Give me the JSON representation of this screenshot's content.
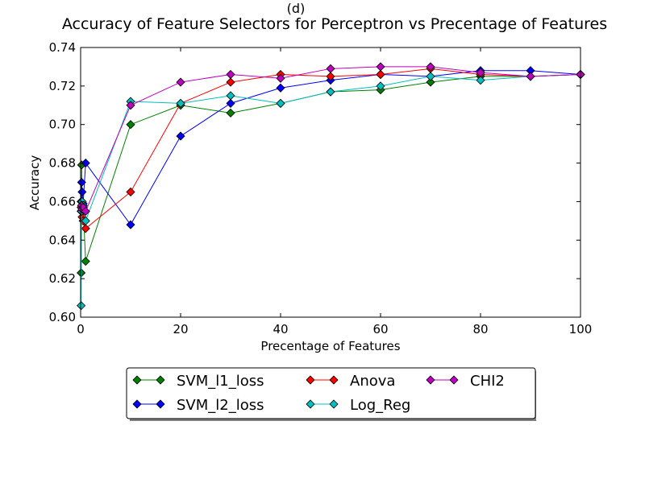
{
  "chart_data": {
    "type": "line",
    "subtitle": "(d)",
    "title": "Accuracy of Feature Selectors for Perceptron vs Precentage of Features",
    "xlabel": "Precentage of Features",
    "ylabel": "Accuracy",
    "xlim": [
      0,
      100
    ],
    "ylim": [
      0.6,
      0.74
    ],
    "xticks": [
      0,
      20,
      40,
      60,
      80,
      100
    ],
    "xtick_labels": [
      "0",
      "20",
      "40",
      "60",
      "80",
      "100"
    ],
    "yticks": [
      0.6,
      0.62,
      0.64,
      0.66,
      0.68,
      0.7,
      0.72,
      0.74
    ],
    "ytick_labels": [
      "0.60",
      "0.62",
      "0.64",
      "0.66",
      "0.68",
      "0.70",
      "0.72",
      "0.74"
    ],
    "grid": false,
    "legend_placement": "below",
    "series": [
      {
        "name": "SVM_l1_loss",
        "color": "#008000",
        "x": [
          0.1,
          0.2,
          0.3,
          0.5,
          1,
          10,
          20,
          30,
          40,
          50,
          60,
          70,
          80,
          90,
          100
        ],
        "y": [
          0.623,
          0.679,
          0.66,
          0.658,
          0.629,
          0.7,
          0.71,
          0.706,
          0.711,
          0.717,
          0.718,
          0.722,
          0.725,
          0.725,
          0.726
        ]
      },
      {
        "name": "SVM_l2_loss",
        "color": "#0000ff",
        "x": [
          0.1,
          0.2,
          0.3,
          0.5,
          1,
          10,
          20,
          30,
          40,
          50,
          60,
          70,
          80,
          90,
          100
        ],
        "y": [
          0.66,
          0.67,
          0.665,
          0.659,
          0.68,
          0.648,
          0.694,
          0.711,
          0.719,
          0.723,
          0.726,
          0.725,
          0.728,
          0.728,
          0.726
        ]
      },
      {
        "name": "Anova",
        "color": "#ff0000",
        "x": [
          0.1,
          0.2,
          0.3,
          0.5,
          1,
          10,
          20,
          30,
          40,
          50,
          60,
          70,
          80,
          90,
          100
        ],
        "y": [
          0.655,
          0.657,
          0.652,
          0.65,
          0.646,
          0.665,
          0.711,
          0.722,
          0.726,
          0.725,
          0.726,
          0.729,
          0.726,
          0.725,
          0.726
        ]
      },
      {
        "name": "Log_Reg",
        "color": "#00bfbf",
        "x": [
          0.1,
          0.2,
          0.3,
          0.5,
          1,
          10,
          20,
          30,
          40,
          50,
          60,
          70,
          80,
          90,
          100
        ],
        "y": [
          0.606,
          0.655,
          0.66,
          0.658,
          0.65,
          0.712,
          0.711,
          0.715,
          0.711,
          0.717,
          0.72,
          0.725,
          0.723,
          0.725,
          0.726
        ]
      },
      {
        "name": "CHI2",
        "color": "#bf00bf",
        "x": [
          0.1,
          0.2,
          0.3,
          0.5,
          1,
          10,
          20,
          30,
          40,
          50,
          60,
          70,
          80,
          90,
          100
        ],
        "y": [
          0.657,
          0.658,
          0.656,
          0.657,
          0.655,
          0.71,
          0.722,
          0.726,
          0.724,
          0.729,
          0.73,
          0.73,
          0.727,
          0.725,
          0.726
        ]
      }
    ]
  }
}
